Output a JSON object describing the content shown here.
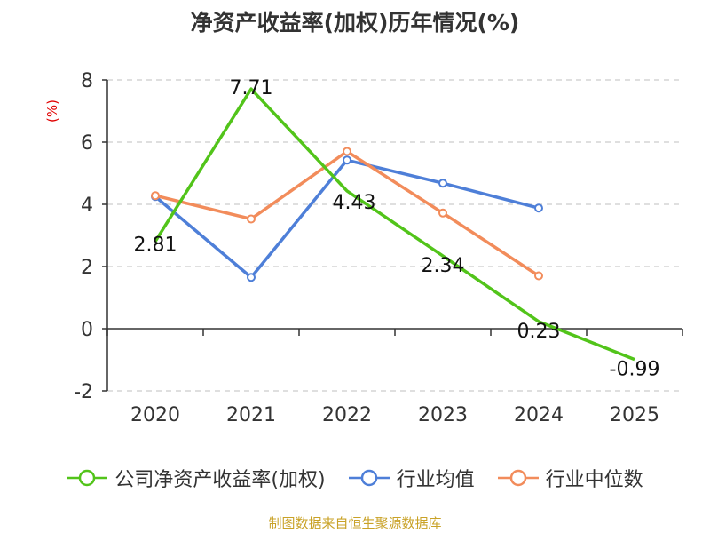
{
  "title": "净资产收益率(加权)历年情况(%)",
  "source": "制图数据来自恒生聚源数据库",
  "colors": {
    "company": "#52c41a",
    "industry_avg": "#4e7fd8",
    "industry_median": "#f28c5b",
    "axis": "#333333",
    "grid": "#cccccc",
    "ylabel": "#e00000"
  },
  "chart_data": {
    "type": "line",
    "title": "净资产收益率(加权)历年情况(%)",
    "xlabel": "",
    "ylabel": "(%)",
    "categories": [
      "2020",
      "2021",
      "2022",
      "2023",
      "2024",
      "2025"
    ],
    "ylim": [
      -2,
      8
    ],
    "yticks": [
      -2,
      0,
      2,
      4,
      6,
      8
    ],
    "grid": true,
    "legend_position": "bottom",
    "series": [
      {
        "name": "公司净资产收益率(加权)",
        "values": [
          2.81,
          7.71,
          4.43,
          2.34,
          0.23,
          -0.99
        ],
        "data_labels": true,
        "color_key": "company"
      },
      {
        "name": "行业均值",
        "values": [
          4.25,
          1.65,
          5.42,
          4.68,
          3.88,
          null
        ],
        "data_labels": false,
        "color_key": "industry_avg"
      },
      {
        "name": "行业中位数",
        "values": [
          4.28,
          3.53,
          5.7,
          3.72,
          1.7,
          null
        ],
        "data_labels": false,
        "color_key": "industry_median"
      }
    ]
  }
}
